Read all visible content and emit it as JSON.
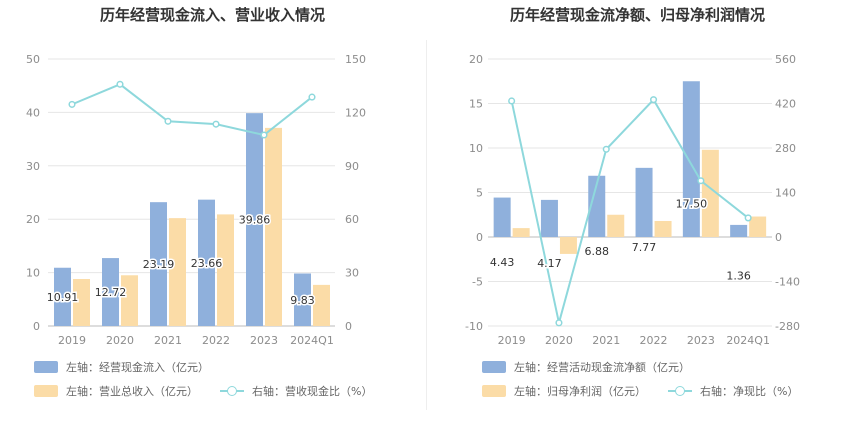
{
  "colors": {
    "bar1": "#8fb0dc",
    "bar2": "#fbdca7",
    "line": "#8ed8dc"
  },
  "chart_data": [
    {
      "type": "bar",
      "title": "历年经营现金流入、营业收入情况",
      "categories": [
        "2019",
        "2020",
        "2021",
        "2022",
        "2023",
        "2024Q1"
      ],
      "series": [
        {
          "name": "左轴：经营现金流入（亿元）",
          "axis": "left",
          "type": "bar",
          "values": [
            10.91,
            12.72,
            23.19,
            23.66,
            39.86,
            9.83
          ],
          "labels": [
            "10.91",
            "12.72",
            "23.19",
            "23.66",
            "39.86",
            "9.83"
          ]
        },
        {
          "name": "左轴：营业总收入（亿元）",
          "axis": "left",
          "type": "bar",
          "values": [
            8.8,
            9.5,
            20.2,
            20.9,
            37.1,
            7.7
          ]
        },
        {
          "name": "右轴：营收现金比（%）",
          "axis": "right",
          "type": "line",
          "values": [
            124.5,
            135.8,
            115.0,
            113.4,
            107.3,
            128.6
          ]
        }
      ],
      "y_left": {
        "min": 0,
        "max": 50,
        "ticks": [
          "0",
          "10",
          "20",
          "30",
          "40",
          "50"
        ]
      },
      "y_right": {
        "min": 0,
        "max": 150,
        "ticks": [
          "0",
          "30",
          "60",
          "90",
          "120",
          "150"
        ]
      }
    },
    {
      "type": "bar",
      "title": "历年经营现金流净额、归母净利润情况",
      "categories": [
        "2019",
        "2020",
        "2021",
        "2022",
        "2023",
        "2024Q1"
      ],
      "series": [
        {
          "name": "左轴：经营活动现金流净额（亿元）",
          "axis": "left",
          "type": "bar",
          "values": [
            4.43,
            4.17,
            6.88,
            7.77,
            17.5,
            1.36
          ],
          "labels": [
            "4.43",
            "4.17",
            "6.88",
            "7.77",
            "17.50",
            "1.36"
          ]
        },
        {
          "name": "左轴：归母净利润（亿元）",
          "axis": "left",
          "type": "bar",
          "values": [
            1.0,
            -1.9,
            2.5,
            1.8,
            9.8,
            2.3
          ]
        },
        {
          "name": "右轴：净现比（%）",
          "axis": "right",
          "type": "line",
          "values": [
            428,
            -270,
            276,
            432,
            177,
            60
          ]
        }
      ],
      "y_left": {
        "min": -10,
        "max": 20,
        "ticks": [
          "-10",
          "-5",
          "0",
          "5",
          "10",
          "15",
          "20"
        ]
      },
      "y_right": {
        "min": -280,
        "max": 560,
        "ticks": [
          "-280",
          "-140",
          "0",
          "140",
          "280",
          "420",
          "560"
        ]
      }
    }
  ]
}
